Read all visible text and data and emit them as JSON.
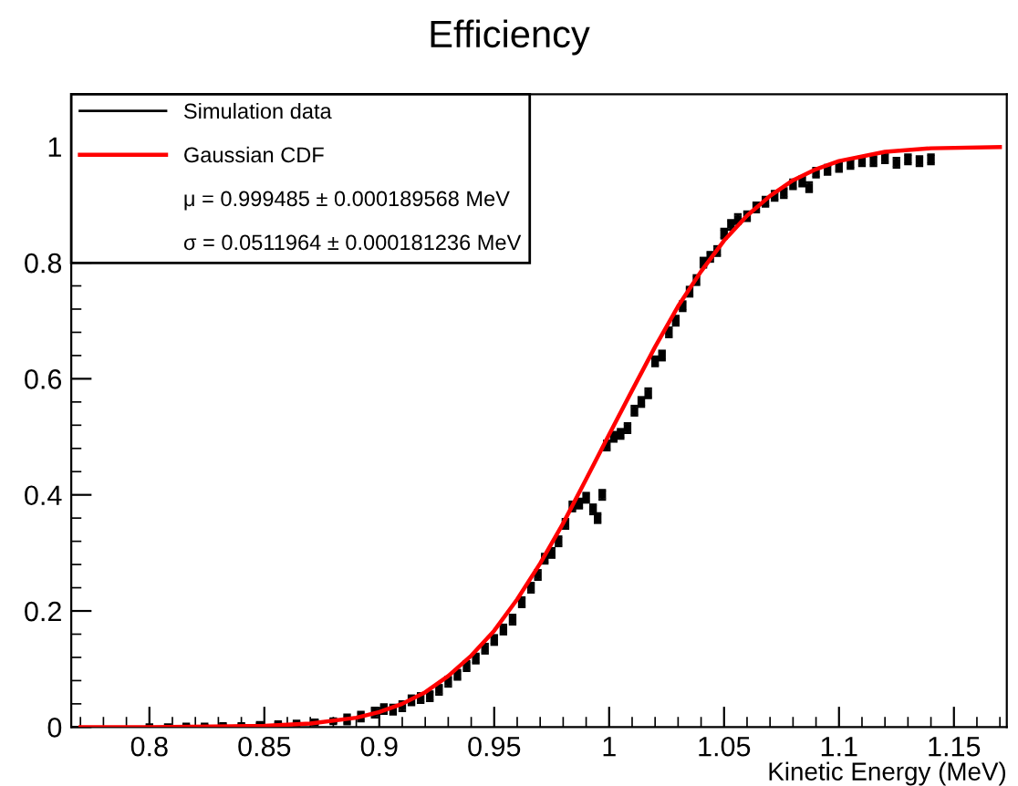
{
  "chart_data": {
    "type": "scatter",
    "title": "Efficiency",
    "xlabel": "Kinetic Energy (MeV)",
    "xlim": [
      0.766,
      1.173
    ],
    "ylim": [
      0,
      1.09
    ],
    "xticks": [
      0.8,
      0.85,
      0.9,
      0.95,
      1,
      1.05,
      1.1,
      1.15
    ],
    "yticks": [
      0,
      0.2,
      0.4,
      0.6,
      0.8,
      1
    ],
    "grid": false,
    "legend": "top left",
    "annotations": [
      "μ = 0.999485 ± 0.000189568 MeV",
      "σ = 0.0511964 ± 0.000181236 MeV"
    ],
    "series": [
      {
        "name": "Simulation data",
        "color": "#000000",
        "marker": "square",
        "x": [
          0.8,
          0.808,
          0.816,
          0.824,
          0.832,
          0.84,
          0.848,
          0.856,
          0.864,
          0.872,
          0.88,
          0.886,
          0.892,
          0.898,
          0.902,
          0.906,
          0.91,
          0.914,
          0.918,
          0.922,
          0.926,
          0.93,
          0.934,
          0.938,
          0.942,
          0.946,
          0.95,
          0.954,
          0.958,
          0.962,
          0.966,
          0.969,
          0.972,
          0.975,
          0.978,
          0.981,
          0.984,
          0.987,
          0.99,
          0.993,
          0.995,
          0.997,
          0.999,
          1.002,
          1.005,
          1.008,
          1.011,
          1.014,
          1.017,
          1.02,
          1.023,
          1.026,
          1.029,
          1.032,
          1.035,
          1.038,
          1.041,
          1.044,
          1.047,
          1.05,
          1.053,
          1.056,
          1.06,
          1.064,
          1.068,
          1.072,
          1.076,
          1.08,
          1.084,
          1.087,
          1.09,
          1.095,
          1.1,
          1.105,
          1.11,
          1.115,
          1.12,
          1.125,
          1.13,
          1.135,
          1.14
        ],
        "values": [
          0.0,
          0.0,
          0.001,
          0.001,
          0.002,
          0.002,
          0.004,
          0.005,
          0.006,
          0.008,
          0.01,
          0.013,
          0.018,
          0.025,
          0.031,
          0.03,
          0.036,
          0.046,
          0.05,
          0.053,
          0.064,
          0.078,
          0.09,
          0.105,
          0.118,
          0.135,
          0.15,
          0.168,
          0.185,
          0.215,
          0.24,
          0.262,
          0.29,
          0.3,
          0.32,
          0.35,
          0.38,
          0.385,
          0.395,
          0.375,
          0.36,
          0.4,
          0.485,
          0.5,
          0.505,
          0.515,
          0.545,
          0.56,
          0.575,
          0.63,
          0.64,
          0.68,
          0.7,
          0.725,
          0.75,
          0.77,
          0.8,
          0.81,
          0.82,
          0.85,
          0.865,
          0.875,
          0.88,
          0.895,
          0.905,
          0.915,
          0.92,
          0.935,
          0.94,
          0.93,
          0.955,
          0.96,
          0.965,
          0.97,
          0.975,
          0.975,
          0.98,
          0.972,
          0.978,
          0.975,
          0.978
        ],
        "errors": [
          0.002,
          0.002,
          0.002,
          0.002,
          0.002,
          0.002,
          0.002,
          0.002,
          0.002,
          0.002,
          0.002,
          0.008,
          0.008,
          0.008,
          0.008,
          0.008,
          0.008,
          0.008,
          0.008,
          0.008,
          0.008,
          0.008,
          0.008,
          0.008,
          0.008,
          0.008,
          0.008,
          0.008,
          0.008,
          0.008,
          0.008,
          0.008,
          0.008,
          0.008,
          0.008,
          0.008,
          0.008,
          0.008,
          0.008,
          0.008,
          0.008,
          0.008,
          0.008,
          0.008,
          0.008,
          0.008,
          0.008,
          0.008,
          0.008,
          0.008,
          0.008,
          0.008,
          0.008,
          0.008,
          0.008,
          0.008,
          0.008,
          0.008,
          0.008,
          0.008,
          0.008,
          0.008,
          0.008,
          0.008,
          0.008,
          0.008,
          0.008,
          0.008,
          0.008,
          0.008,
          0.008,
          0.008,
          0.008,
          0.008,
          0.008,
          0.008,
          0.008,
          0.008,
          0.008,
          0.008,
          0.008
        ]
      },
      {
        "name": "Gaussian CDF",
        "type": "line",
        "color": "#ff0000",
        "line_style": "solid",
        "x": [
          0.77,
          0.8,
          0.85,
          0.87,
          0.89,
          0.9,
          0.91,
          0.92,
          0.93,
          0.94,
          0.95,
          0.96,
          0.97,
          0.98,
          0.99,
          1.0,
          1.01,
          1.02,
          1.03,
          1.04,
          1.05,
          1.06,
          1.07,
          1.08,
          1.09,
          1.1,
          1.12,
          1.14,
          1.17
        ],
        "values": [
          0.0,
          0.0,
          0.002,
          0.006,
          0.016,
          0.026,
          0.04,
          0.06,
          0.088,
          0.123,
          0.166,
          0.22,
          0.282,
          0.351,
          0.427,
          0.504,
          0.58,
          0.655,
          0.725,
          0.785,
          0.838,
          0.881,
          0.915,
          0.942,
          0.961,
          0.975,
          0.991,
          0.997,
          0.999
        ]
      }
    ]
  }
}
